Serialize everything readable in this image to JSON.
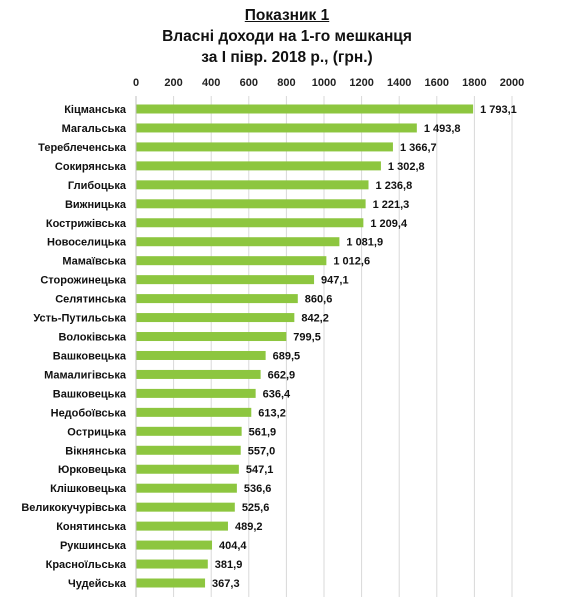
{
  "title": {
    "line1": "Показник 1",
    "line2": "Власні доходи на 1-го мешканця",
    "line3": "за І півр. 2018 р., (грн.)"
  },
  "colors": {
    "bar": "#8dc63f",
    "grid": "#d9d9d9"
  },
  "chart_data": {
    "type": "bar",
    "orientation": "horizontal",
    "categories": [
      "Кіцманська",
      "Магальська",
      "Тереблеченська",
      "Сокирянська",
      "Глибоцька",
      "Вижницька",
      "Кострижівська",
      "Новоселицька",
      "Мамаївська",
      "Сторожинецька",
      "Селятинська",
      "Усть-Путильська",
      "Волоківська",
      "Вашковецька",
      "Мамалигівська",
      "Вашковецька",
      "Недобоївська",
      "Острицька",
      "Вікнянська",
      "Юрковецька",
      "Клішковецька",
      "Великокучурівська",
      "Конятинська",
      "Рукшинська",
      "Красноїльська",
      "Чудейська"
    ],
    "values": [
      1793.1,
      1493.8,
      1366.7,
      1302.8,
      1236.8,
      1221.3,
      1209.4,
      1081.9,
      1012.6,
      947.1,
      860.6,
      842.2,
      799.5,
      689.5,
      662.9,
      636.4,
      613.2,
      561.9,
      557.0,
      547.1,
      536.6,
      525.6,
      489.2,
      404.4,
      381.9,
      367.3
    ],
    "value_labels": [
      "1 793,1",
      "1 493,8",
      "1 366,7",
      "1 302,8",
      "1 236,8",
      "1 221,3",
      "1 209,4",
      "1 081,9",
      "1 012,6",
      "947,1",
      "860,6",
      "842,2",
      "799,5",
      "689,5",
      "662,9",
      "636,4",
      "613,2",
      "561,9",
      "557,0",
      "547,1",
      "536,6",
      "525,6",
      "489,2",
      "404,4",
      "381,9",
      "367,3"
    ],
    "xlim": [
      0,
      2000
    ],
    "x_ticks": [
      0,
      200,
      400,
      600,
      800,
      1000,
      1200,
      1400,
      1600,
      1800,
      2000
    ],
    "x_axis_position": "top",
    "grid": true
  }
}
